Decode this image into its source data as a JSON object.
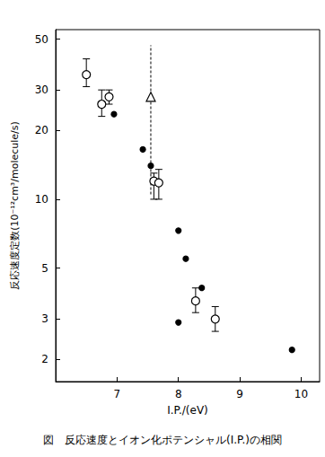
{
  "chart_data": {
    "type": "scatter",
    "title": "図　反応速度とイオン化ポテンシャル(I.P.)の相関",
    "x_label": "I.P./(eV)",
    "y_label": "反応速度定数(10⁻¹²cm³/molecule/s)",
    "xlim": [
      6.0,
      10.3
    ],
    "xticks": [
      7,
      8,
      9,
      10
    ],
    "ylim": [
      1.6,
      55
    ],
    "yticks": [
      2,
      3,
      5,
      10,
      20,
      30,
      50
    ],
    "log": "y",
    "grid": false,
    "series": [
      {
        "marker": "open_circle",
        "color": "#000000",
        "x": [
          6.5,
          6.75,
          6.87,
          7.6,
          7.68,
          8.28,
          8.6
        ],
        "values": [
          35,
          26,
          28,
          12,
          11.8,
          3.6,
          3.0
        ],
        "error_low": [
          31,
          23,
          26,
          10,
          10,
          3.2,
          2.65
        ],
        "error_high": [
          41,
          30,
          30,
          13,
          13.5,
          4.1,
          3.4
        ]
      },
      {
        "marker": "filled_circle",
        "color": "#000000",
        "x": [
          6.95,
          7.42,
          7.55,
          8.0,
          8.12,
          8.38,
          8.0,
          9.85
        ],
        "values": [
          23.5,
          16.5,
          14,
          7.3,
          5.5,
          4.1,
          2.9,
          2.2
        ]
      },
      {
        "marker": "triangle",
        "color": "#000000",
        "line_style": "dashed",
        "x": [
          7.55
        ],
        "values": [
          28
        ],
        "error_low": [
          10.5
        ],
        "error_high": [
          47
        ]
      }
    ]
  }
}
